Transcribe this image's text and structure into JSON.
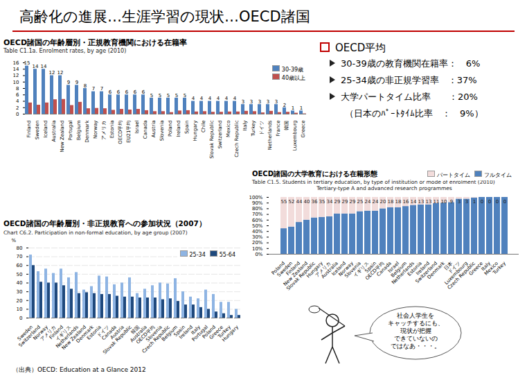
{
  "title": "高齢化の進展…生涯学習の現状…OECD諸国",
  "summary": {
    "heading": "OECD平均",
    "items": [
      "30-39歳の教育機関在籍率：　6%",
      "25-34歳の非正規学習率　：37%",
      "大学パートタイム比率　　：20%"
    ],
    "note": "（日本のﾊﾟｰﾄﾀｲﾑ比率　：　9%）"
  },
  "bubble": [
    "社会人学生を",
    "キャッチするにも、",
    "現状が把握",
    "できていないの",
    "ではなあ・・・。"
  ],
  "source": "（出典）OECD: Education at a Glance 2012",
  "chart_data": [
    {
      "type": "bar",
      "title": "OECD諸国の年齢層別・正規教育機関における在籍率",
      "subtitle": "Table C1.1a. Enrolment rates, by age (2010)",
      "categories": [
        "Finland",
        "Sweden",
        "Iceland",
        "Australia",
        "New Zealand",
        "Portugal",
        "Belgium",
        "Denmark",
        "Norway",
        "アメリカ",
        "Estonia",
        "OECD平均",
        "EU21平均",
        "Israel",
        "Canada",
        "Austria",
        "Slovenia",
        "Poland",
        "Ireland",
        "Spain",
        "Hungary",
        "Chile",
        "Slovak Republic",
        "Switzerland",
        "Mexico",
        "Czech Republic",
        "Italy",
        "Turkey",
        "ドイツ",
        "Netherlands",
        "France",
        "韓国",
        "Luxembourg",
        "Greece"
      ],
      "series": [
        {
          "name": "30-39歳",
          "color": "#4f81bd",
          "data_labels": true,
          "values": [
            15,
            14,
            14,
            12,
            12,
            9,
            9,
            8,
            7,
            7,
            6,
            6,
            6,
            6,
            6,
            5,
            5,
            5,
            5,
            5,
            4,
            4,
            4,
            4,
            4,
            4,
            3,
            3,
            3,
            3,
            3,
            2,
            1,
            1
          ]
        },
        {
          "name": "40歳以上",
          "color": "#c0504d",
          "values": [
            3.5,
            2.8,
            3.5,
            4.5,
            4.6,
            2.7,
            3.7,
            1.7,
            1.8,
            1.7,
            1.2,
            1.5,
            1.3,
            1.5,
            1.1,
            0.8,
            0.8,
            0.5,
            1.0,
            1.1,
            0.7,
            0.8,
            0.6,
            0.6,
            0.7,
            0.7,
            0.9,
            0.8,
            0.4,
            0.9,
            0.5,
            0.6,
            0.3,
            0.1
          ]
        }
      ],
      "ylim": [
        0,
        16
      ],
      "yticks": [
        0,
        2,
        4,
        6,
        8,
        10,
        12,
        14,
        16
      ],
      "grid": false,
      "legend": "top-right"
    },
    {
      "type": "bar",
      "title": "OECD諸国の年齢層別・非正規教育への参加状況（2007）",
      "subtitle": "Chart C6.2. Participation in non-formal education, by age group (2007)",
      "y_label": "%",
      "categories": [
        "Sweden",
        "Switzerland",
        "Norway",
        "アメリカ",
        "Finland",
        "イギリス",
        "Netherlands",
        "New Zealand",
        "Denmark",
        "Estonia",
        "ドイツ",
        "Canada",
        "Austria",
        "Slovak Republic",
        "韓国",
        "Australia",
        "OECD平均",
        "Slovenia",
        "Czech Republic",
        "Belgium",
        "Spain",
        "Ireland",
        "Italy",
        "Portugal",
        "Poland",
        "Greece",
        "Turkey",
        "Hungary"
      ],
      "series": [
        {
          "name": "25-34",
          "color": "#8eb4e3",
          "values": [
            72,
            53,
            56,
            51,
            56,
            46,
            52,
            32,
            36,
            48,
            47,
            38,
            40,
            46,
            28,
            33,
            37,
            40,
            39,
            45,
            30,
            24,
            22,
            32,
            27,
            18,
            18,
            10
          ]
        },
        {
          "name": "55-64",
          "color": "#1f497d",
          "values": [
            60,
            41,
            40,
            40,
            37,
            33,
            28,
            29,
            28,
            27,
            27,
            25,
            24,
            24,
            23,
            23,
            23,
            21,
            22,
            19,
            15,
            15,
            12,
            10,
            7,
            5,
            3,
            3
          ]
        }
      ],
      "ylim": [
        0,
        80
      ],
      "yticks": [
        0,
        10,
        20,
        30,
        40,
        50,
        60,
        70,
        80
      ],
      "grid": true,
      "legend": "top-right"
    },
    {
      "type": "bar",
      "stacked": true,
      "title": "OECD諸国の大学教育における在籍形態",
      "subtitle": [
        "Table C1.5. Students in tertiary education, by type of institution or mode of enrolment (2010)",
        "Tertiary-type A and advanced research programmes"
      ],
      "categories": [
        "Poland",
        "Sweden",
        "Finland",
        "New Zealand",
        "Slovak Republic",
        "Hungary",
        "アメリカ",
        "Australia",
        "Iceland",
        "Norway",
        "Slovenia",
        "イギリス",
        "Spain",
        "OECD平均",
        "Canada",
        "Israel",
        "Belgium",
        "Netherlands",
        "Estonia",
        "Ireland",
        "Switzerland",
        "Denmark",
        "日本",
        "ドイツ",
        "Luxembourg",
        "Czech Republic",
        "Greece",
        "Italy",
        "Mexico",
        "Turkey"
      ],
      "series": [
        {
          "name": "フルタイム",
          "color": "#4f81bd",
          "values": [
            45,
            48,
            56,
            60,
            64,
            65,
            66,
            71,
            71,
            71,
            75,
            76,
            76,
            80,
            82,
            82,
            84,
            86,
            87,
            87,
            89,
            90,
            91,
            97,
            97,
            99,
            100,
            100,
            100,
            100
          ]
        },
        {
          "name": "パートタイム",
          "color": "#f2dcdb",
          "data_labels": true,
          "values": [
            55,
            52,
            44,
            40,
            36,
            35,
            34,
            29,
            29,
            29,
            25,
            24,
            24,
            20,
            18,
            18,
            16,
            14,
            13,
            13,
            11,
            10,
            9,
            3,
            3,
            1,
            0,
            0,
            0,
            0
          ]
        }
      ],
      "ylim": [
        0,
        100
      ],
      "yticks": [
        {
          "value": 0,
          "label": "0%"
        },
        {
          "value": 10,
          "label": "10%"
        },
        {
          "value": 20,
          "label": "20%"
        },
        {
          "value": 30,
          "label": "30%"
        },
        {
          "value": 40,
          "label": "40%"
        },
        {
          "value": 50,
          "label": "50%"
        },
        {
          "value": 60,
          "label": "60%"
        },
        {
          "value": 70,
          "label": "70%"
        },
        {
          "value": 80,
          "label": "80%"
        },
        {
          "value": 90,
          "label": "90%"
        },
        {
          "value": 100,
          "label": "100%"
        }
      ],
      "grid": false,
      "legend": "top"
    }
  ]
}
